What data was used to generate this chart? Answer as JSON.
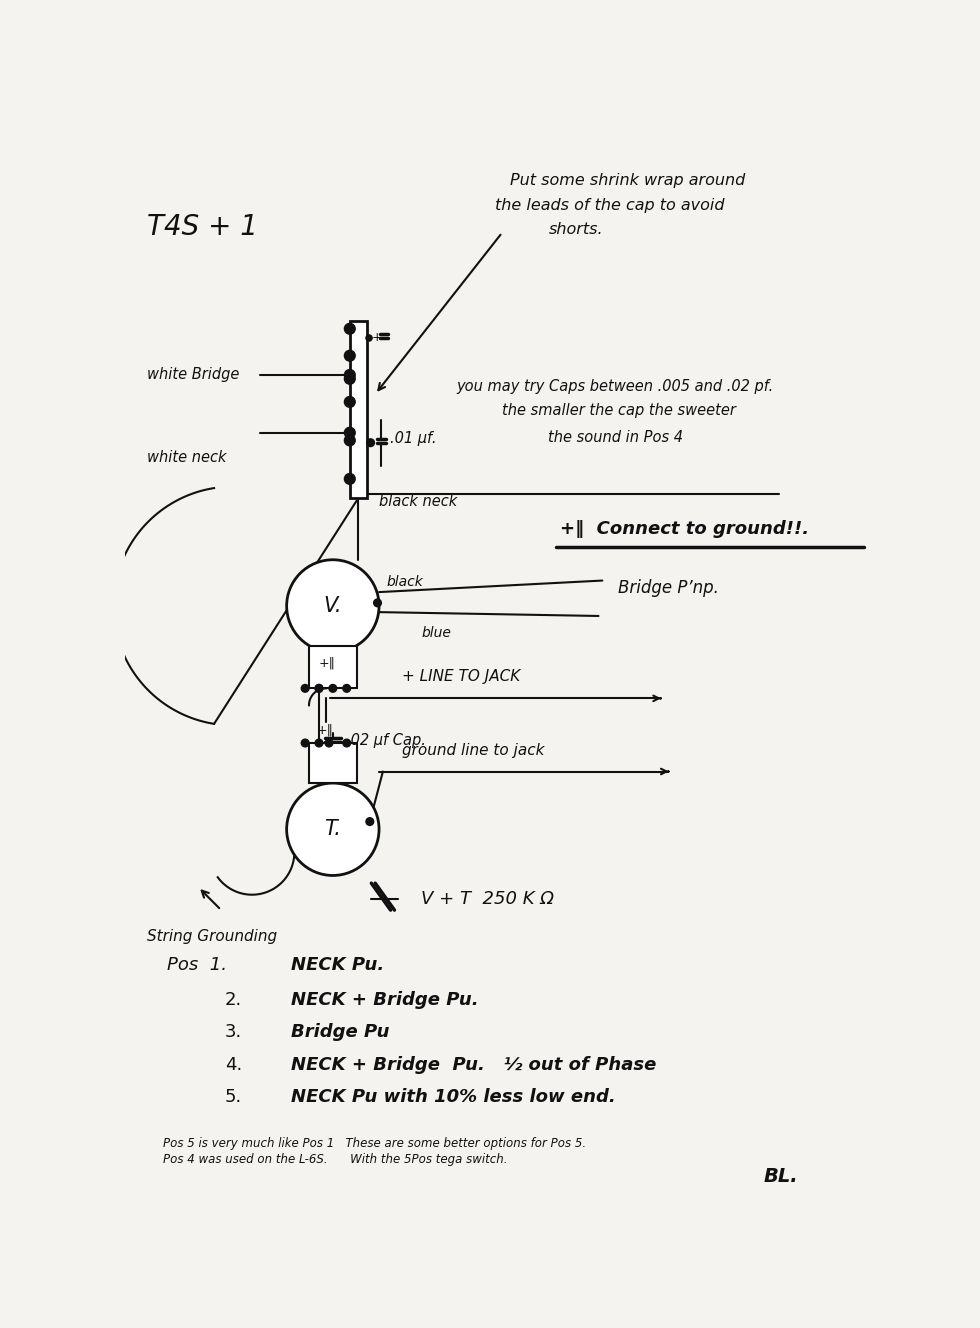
{
  "bg_color": "#f5f3f0",
  "line_color": "#111111",
  "title": "T4S + 1",
  "annotation_top_line1": "Put some shrink wrap around",
  "annotation_top_line2": "the leads of the cap to avoid",
  "annotation_top_line3": "shorts.",
  "annotation_cap_line1": "you may try Caps between .005 and .02 pf.",
  "annotation_cap_line2": "the smaller the cap the sweeter",
  "annotation_cap_line3": "the sound in Pos 4",
  "label_white_bridge": "white Bridge",
  "label_white_neck": "white neck",
  "label_black_neck": "black neck",
  "label_cap_01": ".01 μf.",
  "label_ground": "+‖  Connect to ground!!.",
  "label_black": "black",
  "label_blue": "blue",
  "label_bridge_pnp": "Bridge P’np.",
  "label_plus_line": "+ LINE TO JACK",
  "label_cap_02": ".02 μf Cap.",
  "label_ground_line": "ground line to jack",
  "label_string_ground": "String Grounding",
  "label_vt": "V + T  250 K Ω",
  "label_v": "V.",
  "label_t": "T.",
  "pos_line": "Pos  1.       NECK Pu.",
  "pos2": "2.         NECK + Bridge Pu.",
  "pos3": "3.         Bridge Pu",
  "pos4": "4.         NECK + Bridge  Pu.   ½ out of Phase",
  "pos5": "5.         NECK Pu with 10% less low end.",
  "footer1": "Pos 5 is very much like Pos 1   These are some better options for Pos 5.",
  "footer2": "Pos 4 was used on the L-6S.      With the 5Pos tega switch.",
  "sig": "BL."
}
